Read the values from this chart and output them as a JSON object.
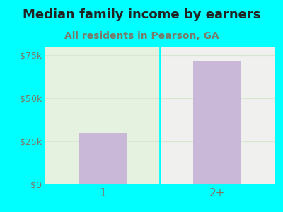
{
  "title": "Median family income by earners",
  "subtitle": "All residents in Pearson, GA",
  "categories": [
    "1",
    "2+"
  ],
  "values": [
    30000,
    72000
  ],
  "bar_color": "#c9b8d8",
  "ylim": [
    0,
    80000
  ],
  "yticks": [
    0,
    25000,
    50000,
    75000
  ],
  "ytick_labels": [
    "$0",
    "$25k",
    "$50k",
    "$75k"
  ],
  "title_fontsize": 13,
  "title_color": "#222222",
  "subtitle_fontsize": 10,
  "subtitle_color": "#7a7a6a",
  "tick_color": "#7a7a6a",
  "tick_fontsize": 9,
  "xtick_fontsize": 11,
  "bg_outer": "#00FFFF",
  "bg_left": "#e6f2e0",
  "bg_right": "#f0f0ee",
  "divider_color": "#00FFFF",
  "grid_color": "#d8e8d0",
  "bottom_line_color": "#aaaaaa"
}
